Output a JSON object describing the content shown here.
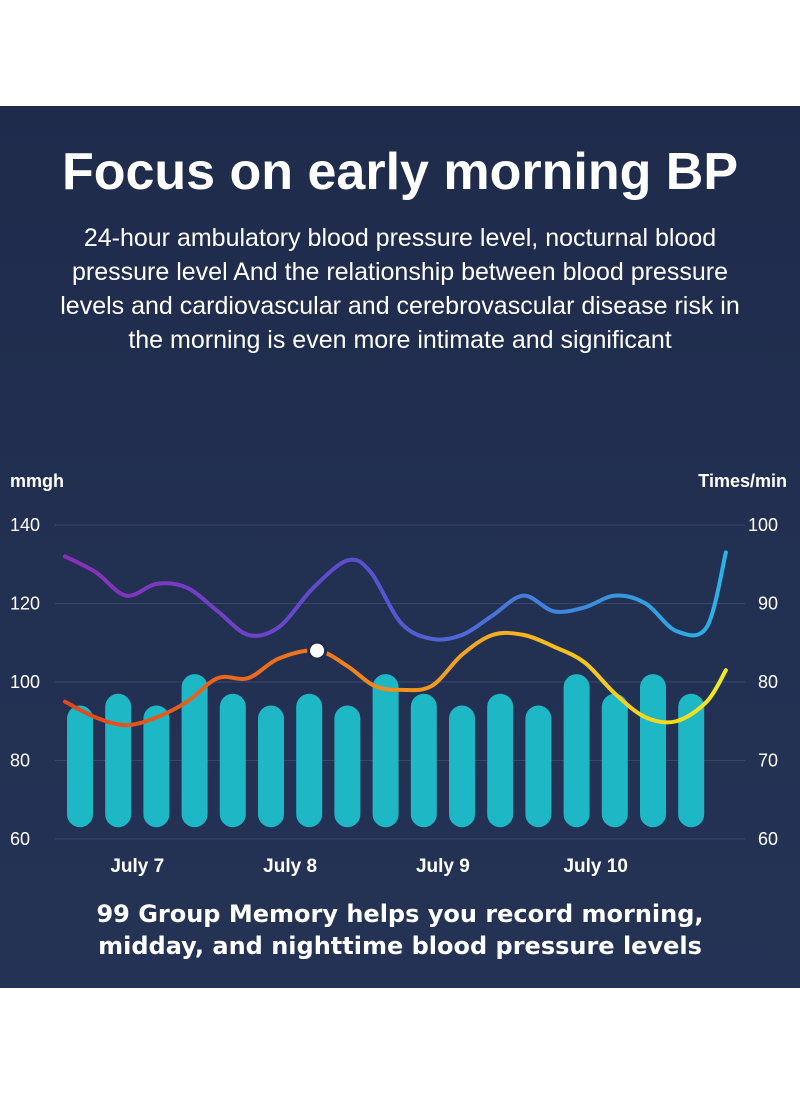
{
  "colors": {
    "background": "#1f2b4b",
    "bar": "#1eb7c6",
    "bp_line_gradient": [
      "#8a2fb8",
      "#4a63d6",
      "#2aa8e0"
    ],
    "hr_line_gradient": [
      "#e0471b",
      "#f5a623",
      "#f2ea1d"
    ],
    "grid": "#3a4868",
    "text": "#ffffff"
  },
  "header": {
    "title": "Focus on early morning BP",
    "subtitle": "24-hour ambulatory blood pressure level, nocturnal blood pressure level And the relationship between blood pressure levels and cardiovascular and cerebrovascular disease risk in the morning is even more intimate and significant"
  },
  "footer": {
    "line1": "99 Group Memory helps you record morning,",
    "line2": "midday, and nighttime blood pressure levels"
  },
  "chart_data": {
    "type": "bar",
    "left_axis_label": "mmgh",
    "right_axis_label": "Times/min",
    "left_ticks": [
      "140",
      "120",
      "100",
      "80",
      "60"
    ],
    "right_ticks": [
      "100",
      "90",
      "80",
      "70",
      "60"
    ],
    "ylim_left": [
      60,
      140
    ],
    "ylim_right": [
      60,
      100
    ],
    "grid": true,
    "x_tick_labels": [
      {
        "label": "July 7",
        "index": 1.5
      },
      {
        "label": "July 8",
        "index": 5.5
      },
      {
        "label": "July 9",
        "index": 9.5
      },
      {
        "label": "July 10",
        "index": 13.5
      }
    ],
    "bars": [
      94,
      97,
      94,
      102,
      97,
      94,
      97,
      94,
      102,
      97,
      94,
      97,
      94,
      102,
      97,
      102,
      97
    ],
    "bars_baseline": 63,
    "bp_line": {
      "x": [
        0,
        0.8,
        1.6,
        2.4,
        3.2,
        4.0,
        4.8,
        5.6,
        6.5,
        7.4,
        8.0,
        8.8,
        9.6,
        10.4,
        11.2,
        12.0,
        12.8,
        13.6,
        14.4,
        15.2,
        16.0,
        16.8,
        17.3
      ],
      "y": [
        132,
        128,
        122,
        125,
        124,
        118,
        112,
        114,
        124,
        131,
        128,
        115,
        111,
        112,
        117,
        122,
        118,
        119,
        122,
        120,
        113,
        114,
        133
      ]
    },
    "hr_line": {
      "x": [
        0,
        0.8,
        1.6,
        2.4,
        3.2,
        4.0,
        4.8,
        5.6,
        6.6,
        7.4,
        8.1,
        8.8,
        9.6,
        10.4,
        11.2,
        12.0,
        12.8,
        13.6,
        14.4,
        15.2,
        16.0,
        16.8,
        17.3
      ],
      "y": [
        77.5,
        75.5,
        74.5,
        75.5,
        77.5,
        80.5,
        80.5,
        83.0,
        84.0,
        82.0,
        79.5,
        79.0,
        79.5,
        83.5,
        86.0,
        86.0,
        84.5,
        82.5,
        78.5,
        75.5,
        75.0,
        77.5,
        81.5
      ]
    },
    "highlight_point": {
      "index": 6.6,
      "value": 84.0
    }
  }
}
